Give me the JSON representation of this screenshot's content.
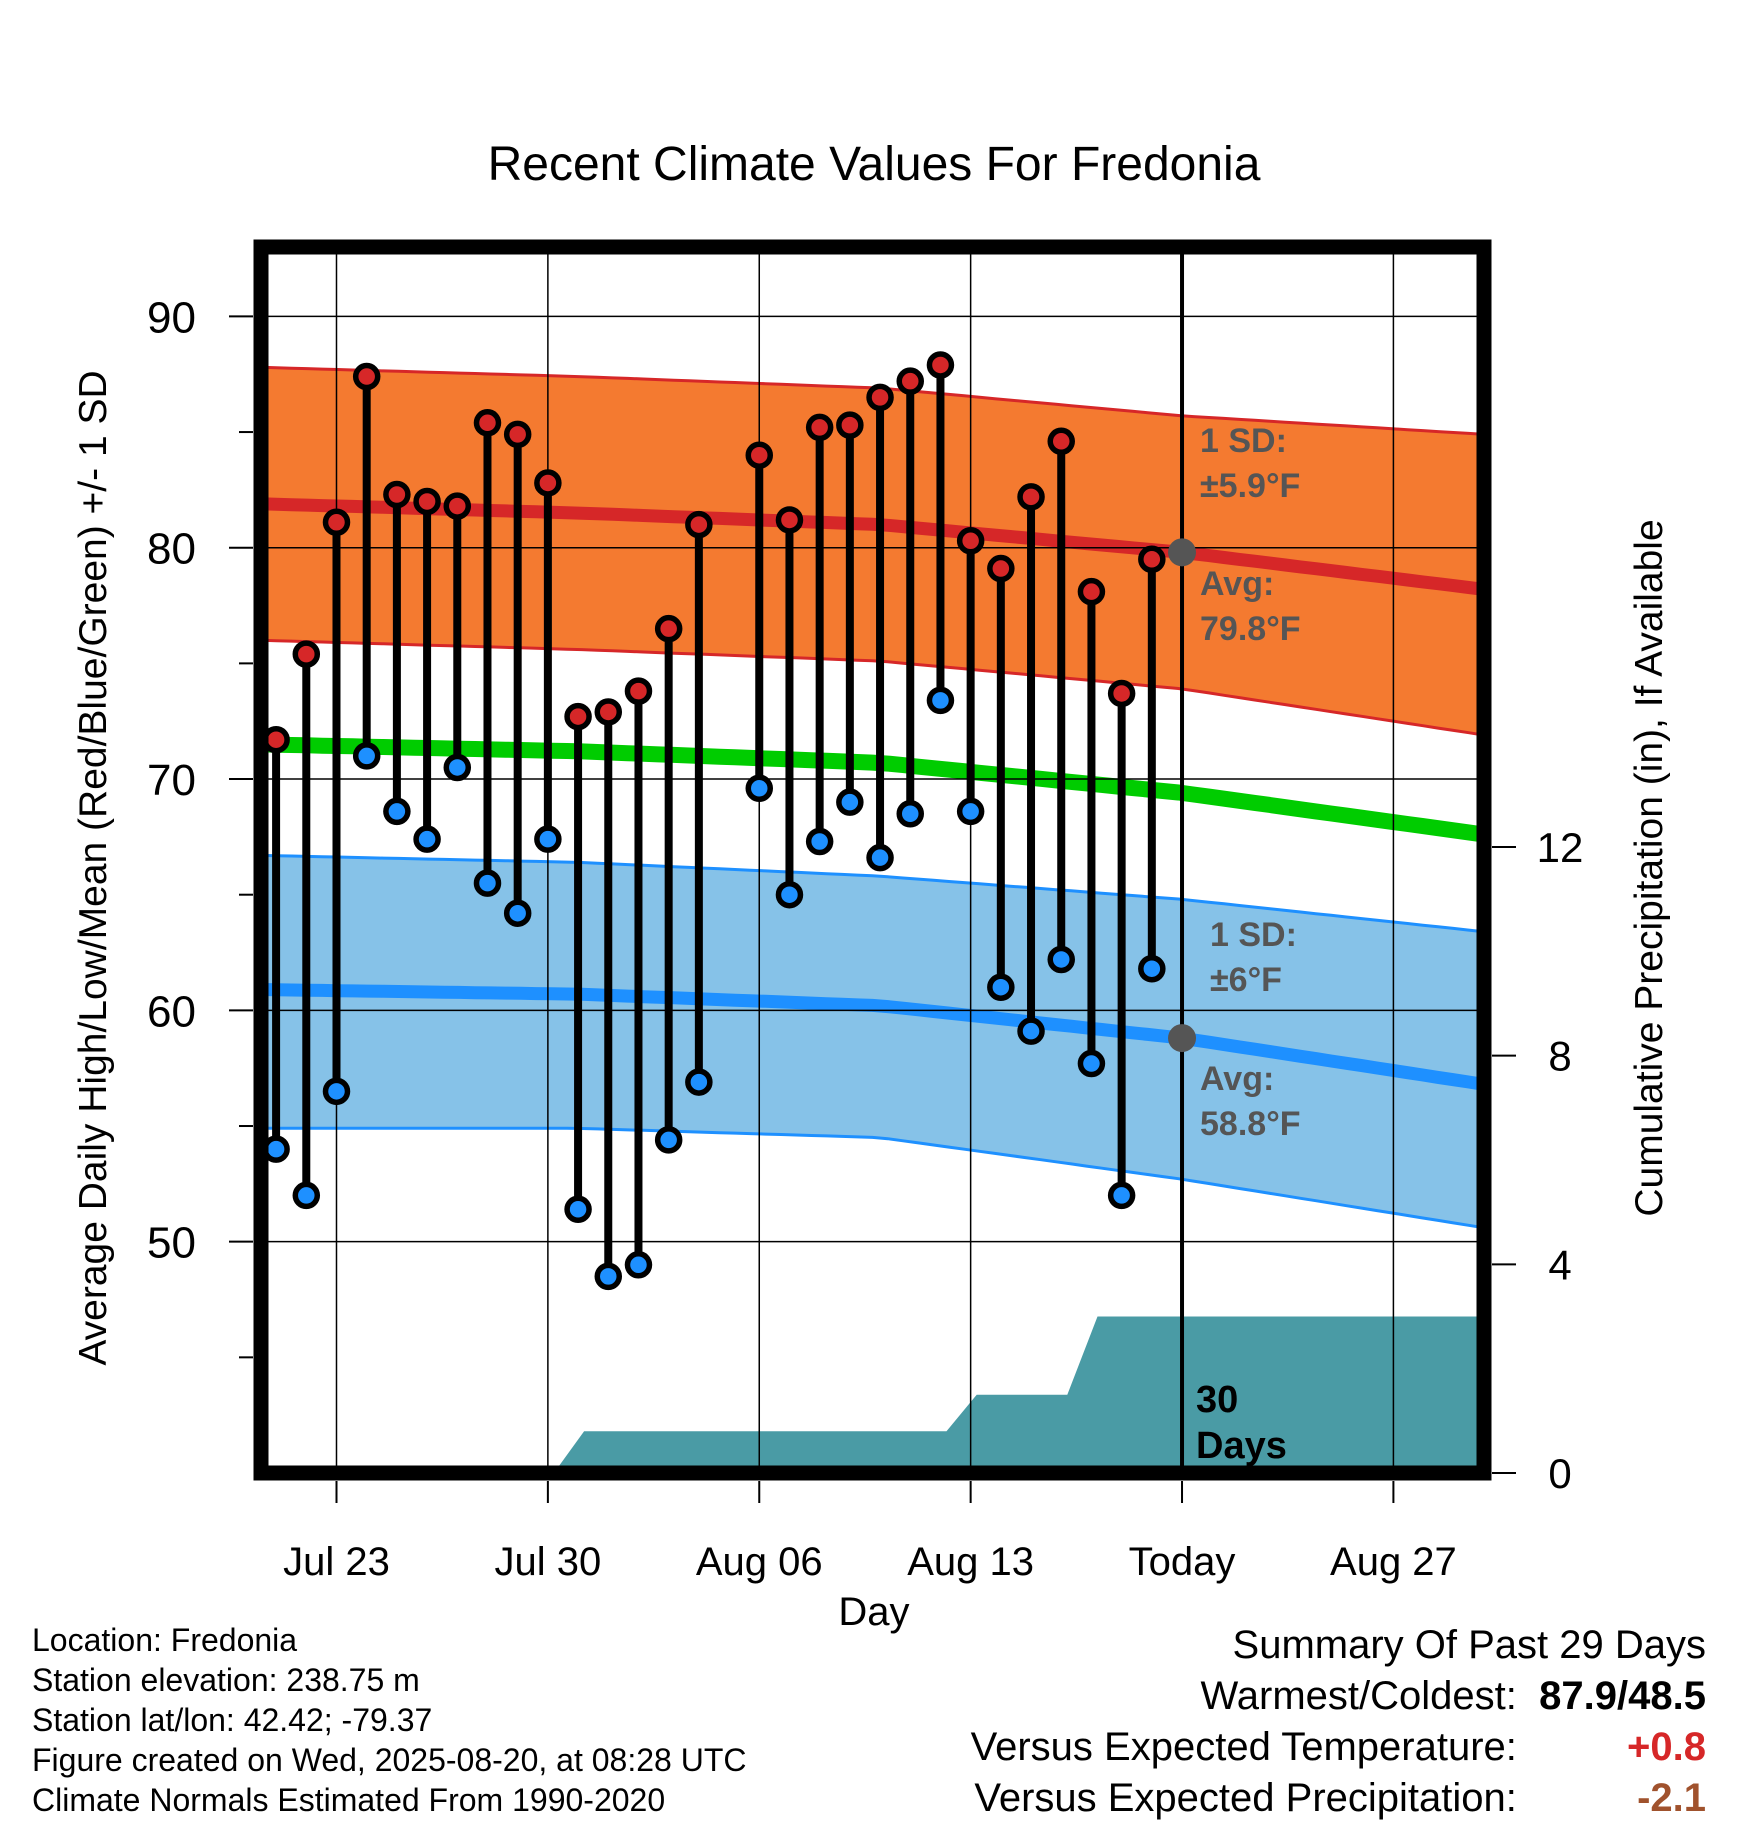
{
  "chart_data": {
    "type": "line",
    "title": "Recent Climate Values For Fredonia",
    "xlabel": "Day",
    "ylabel_left": "Average Daily High/Low/Mean (Red/Blue/Green) +/- 1 SD",
    "ylabel_right": "Cumulative Precipitation (in), If Available",
    "x_tick_labels": [
      "Jul 23",
      "Jul 30",
      "Aug 06",
      "Aug 13",
      "Today",
      "Aug 27"
    ],
    "x_tick_days": [
      2,
      9,
      16,
      23,
      30,
      37
    ],
    "xlim_days": [
      -0.5,
      40
    ],
    "x_day_zero": "Jul 21",
    "ylim": [
      40,
      93
    ],
    "y_ticks": [
      50,
      60,
      70,
      80,
      90
    ],
    "y2_ticks": [
      0,
      4,
      8,
      12
    ],
    "y2_tick_labels": [
      "0",
      "4",
      "8",
      "12"
    ],
    "y2lim": [
      0,
      23.5
    ],
    "grid": true,
    "today_day": 30,
    "today_label": "30\nDays",
    "observed": {
      "days": [
        0,
        1,
        2,
        3,
        4,
        5,
        6,
        7,
        8,
        9,
        10,
        11,
        12,
        13,
        14,
        15,
        16,
        17,
        18,
        19,
        20,
        21,
        22,
        23,
        24,
        25,
        26,
        27,
        28,
        29
      ],
      "high": [
        71.7,
        75.4,
        81.1,
        87.4,
        82.3,
        82.0,
        81.8,
        85.4,
        84.9,
        82.8,
        72.7,
        72.9,
        73.8,
        76.5,
        81.0,
        null,
        84.0,
        81.2,
        85.2,
        85.3,
        86.5,
        87.2,
        87.9,
        80.3,
        79.1,
        82.2,
        84.6,
        78.1,
        73.7,
        79.5
      ],
      "low": [
        54.0,
        52.0,
        56.5,
        71.0,
        68.6,
        67.4,
        70.5,
        65.5,
        64.2,
        67.4,
        51.4,
        48.5,
        49.0,
        54.4,
        56.9,
        null,
        69.6,
        65.0,
        67.3,
        69.0,
        66.6,
        68.5,
        73.4,
        68.6,
        61.0,
        59.1,
        62.2,
        57.7,
        52.0,
        61.8
      ]
    },
    "normals": {
      "days": [
        -0.5,
        10,
        20,
        30,
        40
      ],
      "high_mean": [
        81.9,
        81.5,
        81.0,
        79.8,
        78.2
      ],
      "high_sd_upper": [
        87.8,
        87.4,
        86.9,
        85.7,
        84.9
      ],
      "high_sd_lower": [
        76.0,
        75.6,
        75.1,
        73.9,
        71.9
      ],
      "mean": [
        71.5,
        71.2,
        70.7,
        69.4,
        67.6
      ],
      "low_mean": [
        60.9,
        60.7,
        60.2,
        58.8,
        56.8
      ],
      "low_sd_upper": [
        66.7,
        66.4,
        65.8,
        64.8,
        63.4
      ],
      "low_sd_lower": [
        54.9,
        54.9,
        54.5,
        52.7,
        50.6
      ]
    },
    "precip": {
      "days": [
        -0.5,
        9.2,
        10.2,
        22.2,
        23.2,
        26.2,
        27.2,
        40
      ],
      "cum": [
        0,
        0,
        0.8,
        0.8,
        1.5,
        1.5,
        3.0,
        3.0
      ]
    },
    "annotations": {
      "high_sd": "1 SD:",
      "high_sd_val": "±5.9°F",
      "high_avg": "Avg:",
      "high_avg_val": "79.8°F",
      "low_sd": "1 SD:",
      "low_sd_val": "±6°F",
      "low_avg": "Avg:",
      "low_avg_val": "58.8°F"
    },
    "colors": {
      "high_band": "#f47a30",
      "high_line": "#d62728",
      "mean_line": "#00cc00",
      "low_band": "#86c2e8",
      "low_line": "#1e90ff",
      "precip": "#4a9ba5",
      "high_dot": "#d62728",
      "low_dot": "#1e90ff",
      "avg_marker": "#555555",
      "annotation_text": "#555555"
    }
  },
  "info": {
    "location": "Location: Fredonia",
    "elevation": "Station elevation: 238.75 m",
    "latlon": "Station lat/lon: 42.42; -79.37",
    "created": "Figure created on Wed, 2025-08-20, at 08:28 UTC",
    "normals": "Climate Normals Estimated From 1990-2020"
  },
  "summary": {
    "title": "Summary Of Past 29 Days",
    "warm_cold_label": "Warmest/Coldest:",
    "warm_cold_value": "87.9/48.5",
    "temp_label": "Versus Expected Temperature:",
    "temp_value": "+0.8",
    "temp_color": "#d62728",
    "precip_label": "Versus Expected Precipitation:",
    "precip_value": "-2.1",
    "precip_color": "#a0522d"
  }
}
